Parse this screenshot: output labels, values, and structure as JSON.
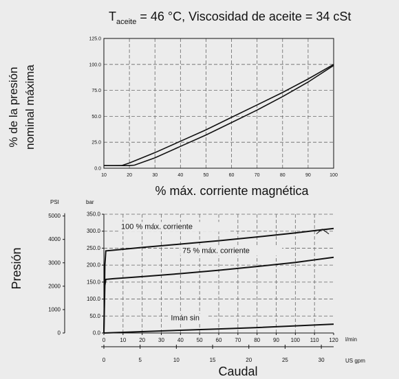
{
  "header": {
    "t_symbol": "T",
    "t_subscript": "aceite",
    "rest": " = 46 °C, Viscosidad de aceite = 34 cSt"
  },
  "colors": {
    "background": "#ececec",
    "line": "#111111",
    "grid": "#666666"
  },
  "chart_data": [
    {
      "type": "line",
      "title": "",
      "xlabel": "% máx. corriente magnética",
      "ylabel_lines": [
        "% de la presión",
        "nominal máxima"
      ],
      "xlim": [
        10,
        100
      ],
      "ylim": [
        0,
        125
      ],
      "xticks": [
        10,
        20,
        30,
        40,
        50,
        60,
        70,
        80,
        90,
        100
      ],
      "xtick_labels": [
        "10",
        "20",
        "30",
        "40",
        "50",
        "60",
        "70",
        "80",
        "90",
        "100"
      ],
      "yticks": [
        0,
        25,
        50,
        75,
        100,
        125
      ],
      "ytick_labels": [
        "0.0",
        "25.0",
        "50.0",
        "75.0",
        "100.0",
        "125.0"
      ],
      "grid": true,
      "series": [
        {
          "x": [
            10,
            14,
            17,
            20,
            30,
            40,
            50,
            60,
            70,
            80,
            90,
            100
          ],
          "y": [
            2.5,
            2.5,
            2.6,
            5,
            15,
            26,
            37,
            49,
            61,
            73,
            86,
            100
          ]
        },
        {
          "x": [
            10,
            16,
            20,
            22,
            30,
            40,
            50,
            60,
            70,
            80,
            90,
            100
          ],
          "y": [
            2.5,
            2.5,
            2.5,
            3,
            10,
            21,
            32,
            44,
            56,
            69,
            83,
            99
          ]
        }
      ]
    },
    {
      "type": "line",
      "title": "",
      "ylabel": "Presión",
      "xlabel": "Caudal",
      "left_unit": "PSI",
      "y_unit": "bar",
      "x_unit": "l/min",
      "x2_unit": "US gpm",
      "xlim": [
        0,
        120
      ],
      "ylim": [
        0,
        350
      ],
      "xticks": [
        0,
        10,
        20,
        30,
        40,
        50,
        60,
        70,
        80,
        90,
        100,
        110,
        120
      ],
      "xtick_labels": [
        "0",
        "10",
        "20",
        "30",
        "40",
        "50",
        "60",
        "70",
        "80",
        "90",
        "100",
        "110",
        "120"
      ],
      "yticks": [
        0,
        50,
        100,
        150,
        200,
        250,
        300,
        350
      ],
      "ytick_labels": [
        "0.0",
        "50.0",
        "100.0",
        "150.0",
        "200.0",
        "250.0",
        "300.0",
        "350.0"
      ],
      "psi_ticks": [
        0,
        1000,
        2000,
        3000,
        4000,
        5000
      ],
      "psi_tick_labels": [
        "0",
        "1000",
        "2000",
        "3000",
        "4000",
        "5000"
      ],
      "gpm_ticks": [
        0,
        5,
        10,
        15,
        20,
        25,
        30
      ],
      "gpm_tick_labels": [
        "0",
        "5",
        "10",
        "15",
        "20",
        "25",
        "30"
      ],
      "grid": true,
      "series": [
        {
          "name": "100 % máx. corriente",
          "x": [
            0,
            0.5,
            1,
            5,
            20,
            40,
            60,
            80,
            100,
            112,
            120
          ],
          "y": [
            0,
            200,
            242,
            244,
            252,
            262,
            272,
            283,
            295,
            303,
            308
          ]
        },
        {
          "name": "75 % máx. corriente",
          "x": [
            0,
            0.5,
            1,
            5,
            20,
            40,
            60,
            80,
            100,
            120
          ],
          "y": [
            0,
            140,
            158,
            160,
            166,
            175,
            185,
            196,
            208,
            223
          ]
        },
        {
          "name": "Imán sin",
          "x": [
            0,
            10,
            20,
            40,
            60,
            80,
            100,
            120
          ],
          "y": [
            0,
            2,
            4,
            8,
            12,
            16,
            21,
            26
          ]
        }
      ],
      "annotations": [
        "100 % máx. corriente",
        "75 % máx. corriente",
        "Imán sin"
      ]
    }
  ]
}
